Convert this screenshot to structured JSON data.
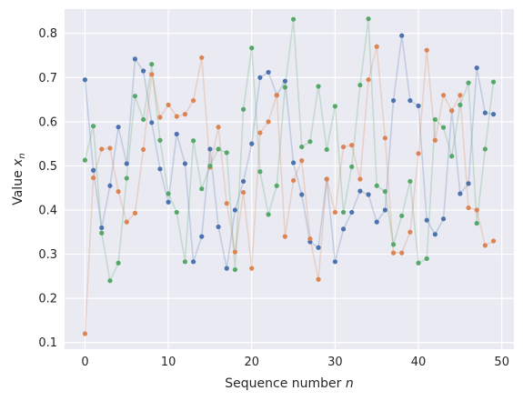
{
  "chart_data": {
    "type": "line",
    "xlabel": "Sequence number",
    "xlabel_var": "n",
    "ylabel": "Value",
    "ylabel_var": "x",
    "ylabel_sub": "n",
    "xlim": [
      -2.45,
      51.45
    ],
    "ylim": [
      0.085,
      0.855
    ],
    "xticks": [
      0,
      10,
      20,
      30,
      40,
      50
    ],
    "yticks": [
      0.1,
      0.2,
      0.3,
      0.4,
      0.5,
      0.6,
      0.7,
      0.8
    ],
    "grid": true,
    "background": "#eaeaf2",
    "x": [
      0,
      1,
      2,
      3,
      4,
      5,
      6,
      7,
      8,
      9,
      10,
      11,
      12,
      13,
      14,
      15,
      16,
      17,
      18,
      19,
      20,
      21,
      22,
      23,
      24,
      25,
      26,
      27,
      28,
      29,
      30,
      31,
      32,
      33,
      34,
      35,
      36,
      37,
      38,
      39,
      40,
      41,
      42,
      43,
      44,
      45,
      46,
      47,
      48,
      49
    ],
    "series": [
      {
        "color": "#4c72b0",
        "values": [
          0.695,
          0.49,
          0.36,
          0.455,
          0.588,
          0.505,
          0.742,
          0.715,
          0.598,
          0.493,
          0.418,
          0.572,
          0.505,
          0.283,
          0.34,
          0.538,
          0.362,
          0.268,
          0.4,
          0.465,
          0.55,
          0.7,
          0.712,
          0.66,
          0.692,
          0.507,
          0.435,
          0.328,
          0.315,
          0.47,
          0.283,
          0.357,
          0.395,
          0.443,
          0.435,
          0.373,
          0.4,
          0.648,
          0.795,
          0.648,
          0.636,
          0.377,
          0.345,
          0.38,
          0.625,
          0.437,
          0.46,
          0.722,
          0.62,
          0.617
        ]
      },
      {
        "color": "#dd8452",
        "values": [
          0.12,
          0.473,
          0.538,
          0.54,
          0.442,
          0.373,
          0.393,
          0.537,
          0.707,
          0.61,
          0.638,
          0.612,
          0.617,
          0.648,
          0.745,
          0.497,
          0.588,
          0.415,
          0.305,
          0.44,
          0.268,
          0.575,
          0.6,
          0.66,
          0.34,
          0.467,
          0.512,
          0.335,
          0.243,
          0.47,
          0.395,
          0.543,
          0.547,
          0.47,
          0.695,
          0.77,
          0.563,
          0.303,
          0.303,
          0.35,
          0.528,
          0.762,
          0.558,
          0.66,
          0.625,
          0.66,
          0.405,
          0.4,
          0.32,
          0.33
        ]
      },
      {
        "color": "#55a868",
        "values": [
          0.513,
          0.59,
          0.348,
          0.24,
          0.28,
          0.472,
          0.658,
          0.605,
          0.73,
          0.558,
          0.437,
          0.395,
          0.283,
          0.557,
          0.448,
          0.5,
          0.538,
          0.53,
          0.265,
          0.628,
          0.767,
          0.487,
          0.39,
          0.455,
          0.678,
          0.832,
          0.543,
          0.555,
          0.68,
          0.537,
          0.635,
          0.395,
          0.498,
          0.683,
          0.833,
          0.455,
          0.442,
          0.322,
          0.387,
          0.465,
          0.28,
          0.29,
          0.605,
          0.587,
          0.522,
          0.638,
          0.688,
          0.37,
          0.538,
          0.69
        ]
      }
    ]
  }
}
